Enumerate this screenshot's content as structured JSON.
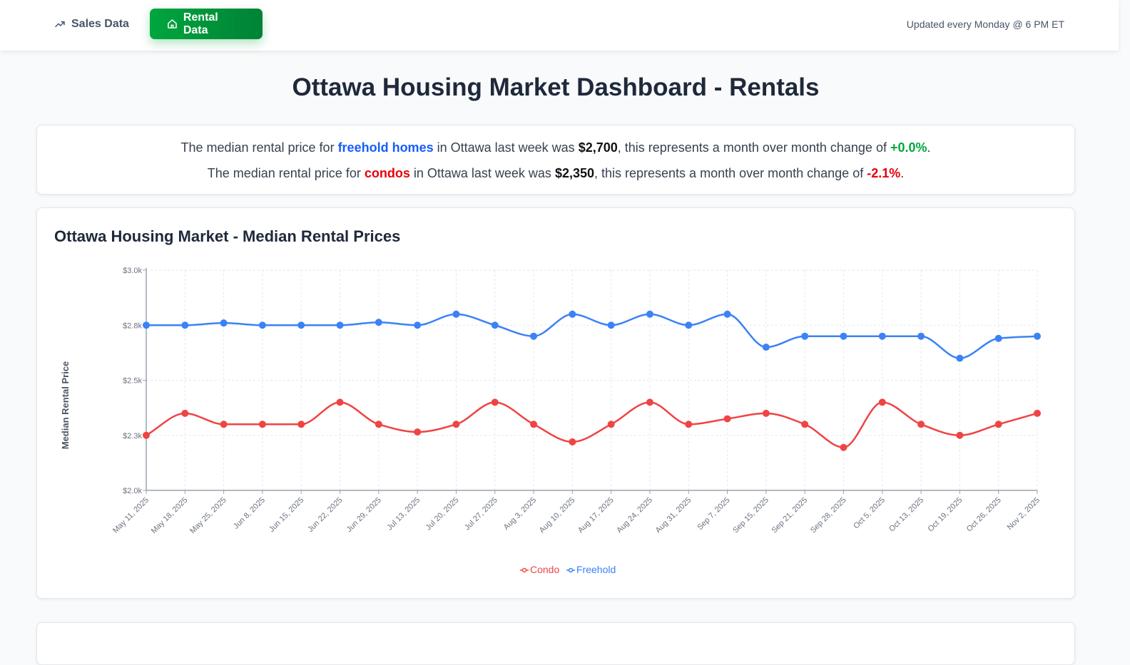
{
  "nav": {
    "tabs": [
      {
        "label": "Sales Data",
        "icon": "trending-up-icon",
        "active": false
      },
      {
        "label": "Rental Data",
        "icon": "home-icon",
        "active": true
      }
    ],
    "updated": "Updated every Monday @ 6 PM ET"
  },
  "page_title": "Ottawa Housing Market Dashboard - Rentals",
  "summary": {
    "freehold": {
      "pre": "The median rental price for ",
      "type": "freehold homes",
      "mid": " in Ottawa last week was ",
      "price": "$2,700",
      "mid2": ", this represents a month over month change of ",
      "change": "+0.0%",
      "end": "."
    },
    "condo": {
      "pre": "The median rental price for ",
      "type": "condos",
      "mid": " in Ottawa last week was ",
      "price": "$2,350",
      "mid2": ", this represents a month over month change of ",
      "change": "-2.1%",
      "end": "."
    }
  },
  "colors": {
    "condo": "#ef4444",
    "freehold": "#3b82f6",
    "accent": "#00a63e"
  },
  "chart_data": {
    "type": "line",
    "title": "Ottawa Housing Market - Median Rental Prices",
    "ylabel": "Median Rental Price",
    "xlabel": "",
    "ylim": [
      2000,
      3000
    ],
    "yticks": [
      2000,
      2250,
      2500,
      2750,
      3000
    ],
    "ytick_labels": [
      "$2.0k",
      "$2.3k",
      "$2.5k",
      "$2.8k",
      "$3.0k"
    ],
    "grid": true,
    "legend_placement": "bottom",
    "categories": [
      "May 11, 2025",
      "May 18, 2025",
      "May 25, 2025",
      "Jun 8, 2025",
      "Jun 15, 2025",
      "Jun 22, 2025",
      "Jun 29, 2025",
      "Jul 13, 2025",
      "Jul 20, 2025",
      "Jul 27, 2025",
      "Aug 3, 2025",
      "Aug 10, 2025",
      "Aug 17, 2025",
      "Aug 24, 2025",
      "Aug 31, 2025",
      "Sep 7, 2025",
      "Sep 15, 2025",
      "Sep 21, 2025",
      "Sep 28, 2025",
      "Oct 5, 2025",
      "Oct 13, 2025",
      "Oct 19, 2025",
      "Oct 26, 2025",
      "Nov 2, 2025"
    ],
    "series": [
      {
        "name": "Condo",
        "color": "#ef4444",
        "values": [
          2250,
          2350,
          2300,
          2300,
          2300,
          2400,
          2300,
          2265,
          2300,
          2400,
          2300,
          2220,
          2300,
          2400,
          2300,
          2325,
          2350,
          2300,
          2195,
          2400,
          2300,
          2250,
          2300,
          2350
        ]
      },
      {
        "name": "Freehold",
        "color": "#3b82f6",
        "values": [
          2750,
          2750,
          2760,
          2750,
          2750,
          2750,
          2763,
          2750,
          2800,
          2750,
          2700,
          2800,
          2750,
          2800,
          2750,
          2800,
          2650,
          2700,
          2700,
          2700,
          2700,
          2600,
          2690,
          2700
        ]
      }
    ]
  }
}
